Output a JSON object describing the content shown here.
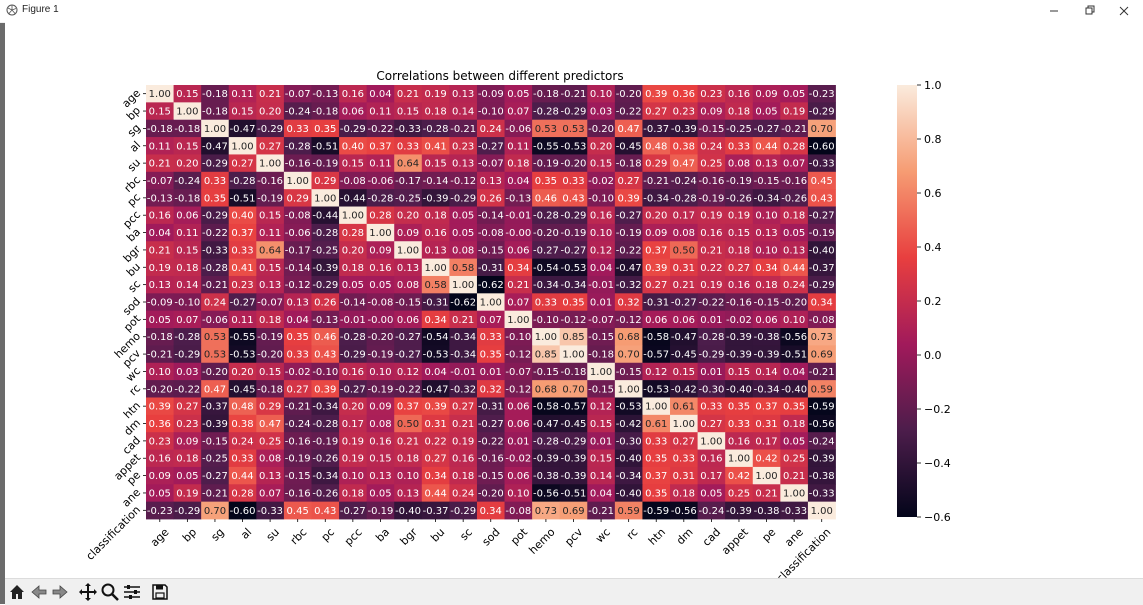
{
  "window": {
    "title": "Figure 1"
  },
  "toolbar": {
    "buttons": [
      "home-button",
      "back-button",
      "forward-button",
      "pan-button",
      "zoom-button",
      "configure-subplots-button",
      "save-button"
    ]
  },
  "colors": {
    "cmap_stops": [
      "#03051a",
      "#4c1d4b",
      "#a11a5b",
      "#e83f3f",
      "#f69c73",
      "#faebdd"
    ]
  },
  "chart_data": {
    "type": "heatmap",
    "title": "Correlations between different predictors",
    "labels": [
      "age",
      "bp",
      "sg",
      "al",
      "su",
      "rbc",
      "pc",
      "pcc",
      "ba",
      "bgr",
      "bu",
      "sc",
      "sod",
      "pot",
      "hemo",
      "pcv",
      "wc",
      "rc",
      "htn",
      "dm",
      "cad",
      "appet",
      "pe",
      "ane",
      "classification"
    ],
    "vmin": -0.6,
    "vmax": 1.0,
    "colorbar_ticks": [
      1.0,
      0.8,
      0.6,
      0.4,
      0.2,
      0.0,
      -0.2,
      -0.4,
      -0.6
    ],
    "colorbar_tick_labels": [
      "1.0",
      "0.8",
      "0.6",
      "0.4",
      "0.2",
      "0.0",
      "−0.2",
      "−0.4",
      "−0.6"
    ],
    "values": [
      [
        1.0,
        0.15,
        -0.18,
        0.11,
        0.21,
        -0.07,
        -0.13,
        0.16,
        0.04,
        0.21,
        0.19,
        0.13,
        -0.09,
        0.05,
        -0.18,
        -0.21,
        0.1,
        -0.2,
        0.39,
        0.36,
        0.23,
        0.16,
        0.09,
        0.05,
        -0.23
      ],
      [
        0.15,
        1.0,
        -0.18,
        0.15,
        0.2,
        -0.24,
        -0.18,
        0.06,
        0.11,
        0.15,
        0.18,
        0.14,
        -0.1,
        0.07,
        -0.28,
        -0.29,
        0.03,
        -0.22,
        0.27,
        0.23,
        0.09,
        0.18,
        0.05,
        0.19,
        -0.29
      ],
      [
        -0.18,
        -0.18,
        1.0,
        -0.47,
        -0.29,
        0.33,
        0.35,
        -0.29,
        -0.22,
        -0.33,
        -0.28,
        -0.21,
        0.24,
        -0.06,
        0.53,
        0.53,
        -0.2,
        0.47,
        -0.37,
        -0.39,
        -0.15,
        -0.25,
        -0.27,
        -0.21,
        0.7
      ],
      [
        0.11,
        0.15,
        -0.47,
        1.0,
        0.27,
        -0.28,
        -0.51,
        0.4,
        0.37,
        0.33,
        0.41,
        0.23,
        -0.27,
        0.11,
        -0.55,
        -0.53,
        0.2,
        -0.45,
        0.48,
        0.38,
        0.24,
        0.33,
        0.44,
        0.28,
        -0.6
      ],
      [
        0.21,
        0.2,
        -0.29,
        0.27,
        1.0,
        -0.16,
        -0.19,
        0.15,
        0.11,
        0.64,
        0.15,
        0.13,
        -0.07,
        0.18,
        -0.19,
        -0.2,
        0.15,
        -0.18,
        0.29,
        0.47,
        0.25,
        0.08,
        0.13,
        0.07,
        -0.33
      ],
      [
        -0.07,
        -0.24,
        0.33,
        -0.28,
        -0.16,
        1.0,
        0.29,
        -0.08,
        -0.06,
        -0.17,
        -0.14,
        -0.12,
        0.13,
        0.04,
        0.35,
        0.33,
        -0.02,
        0.27,
        -0.21,
        -0.24,
        -0.16,
        -0.19,
        -0.15,
        -0.16,
        0.45
      ],
      [
        -0.13,
        -0.18,
        0.35,
        -0.51,
        -0.19,
        0.29,
        1.0,
        -0.44,
        -0.28,
        -0.25,
        -0.39,
        -0.29,
        0.26,
        -0.13,
        0.46,
        0.43,
        -0.1,
        0.39,
        -0.34,
        -0.28,
        -0.19,
        -0.26,
        -0.34,
        -0.26,
        0.43
      ],
      [
        0.16,
        0.06,
        -0.29,
        0.4,
        0.15,
        -0.08,
        -0.44,
        1.0,
        0.28,
        0.2,
        0.18,
        0.05,
        -0.14,
        -0.01,
        -0.28,
        -0.29,
        0.16,
        -0.27,
        0.2,
        0.17,
        0.19,
        0.19,
        0.1,
        0.18,
        -0.27
      ],
      [
        0.04,
        0.11,
        -0.22,
        0.37,
        0.11,
        -0.06,
        -0.28,
        0.28,
        1.0,
        0.09,
        0.16,
        0.05,
        -0.08,
        -0.0,
        -0.2,
        -0.19,
        0.1,
        -0.19,
        0.09,
        0.08,
        0.16,
        0.15,
        0.13,
        0.05,
        -0.19
      ],
      [
        0.21,
        0.15,
        -0.33,
        0.33,
        0.64,
        -0.17,
        -0.25,
        0.2,
        0.09,
        1.0,
        0.13,
        0.08,
        -0.15,
        0.06,
        -0.27,
        -0.27,
        0.12,
        -0.22,
        0.37,
        0.5,
        0.21,
        0.18,
        0.1,
        0.13,
        -0.4
      ],
      [
        0.19,
        0.18,
        -0.28,
        0.41,
        0.15,
        -0.14,
        -0.39,
        0.18,
        0.16,
        0.13,
        1.0,
        0.58,
        -0.31,
        0.34,
        -0.54,
        -0.53,
        0.04,
        -0.47,
        0.39,
        0.31,
        0.22,
        0.27,
        0.34,
        0.44,
        -0.37
      ],
      [
        0.13,
        0.14,
        -0.21,
        0.23,
        0.13,
        -0.12,
        -0.29,
        0.05,
        0.05,
        0.08,
        0.58,
        1.0,
        -0.62,
        0.21,
        -0.34,
        -0.34,
        -0.01,
        -0.32,
        0.27,
        0.21,
        0.19,
        0.16,
        0.18,
        0.24,
        -0.29
      ],
      [
        -0.09,
        -0.1,
        0.24,
        -0.27,
        -0.07,
        0.13,
        0.26,
        -0.14,
        -0.08,
        -0.15,
        -0.31,
        -0.62,
        1.0,
        0.07,
        0.33,
        0.35,
        0.01,
        0.32,
        -0.31,
        -0.27,
        -0.22,
        -0.16,
        -0.15,
        -0.2,
        0.34
      ],
      [
        0.05,
        0.07,
        -0.06,
        0.11,
        0.18,
        0.04,
        -0.13,
        -0.01,
        -0.0,
        0.06,
        0.34,
        0.21,
        0.07,
        1.0,
        -0.1,
        -0.12,
        -0.07,
        -0.12,
        0.06,
        0.06,
        0.01,
        -0.02,
        0.06,
        0.1,
        -0.08
      ],
      [
        -0.18,
        -0.28,
        0.53,
        -0.55,
        -0.19,
        0.35,
        0.46,
        -0.28,
        -0.2,
        -0.27,
        -0.54,
        -0.34,
        0.33,
        -0.1,
        1.0,
        0.85,
        -0.15,
        0.68,
        -0.58,
        -0.47,
        -0.28,
        -0.39,
        -0.38,
        -0.56,
        0.73
      ],
      [
        -0.21,
        -0.29,
        0.53,
        -0.53,
        -0.2,
        0.33,
        0.43,
        -0.29,
        -0.19,
        -0.27,
        -0.53,
        -0.34,
        0.35,
        -0.12,
        0.85,
        1.0,
        -0.18,
        0.7,
        -0.57,
        -0.45,
        -0.29,
        -0.39,
        -0.39,
        -0.51,
        0.69
      ],
      [
        0.1,
        0.03,
        -0.2,
        0.2,
        0.15,
        -0.02,
        -0.1,
        0.16,
        0.1,
        0.12,
        0.04,
        -0.01,
        0.01,
        -0.07,
        -0.15,
        -0.18,
        1.0,
        -0.15,
        0.12,
        0.15,
        0.01,
        0.15,
        0.14,
        0.04,
        -0.21
      ],
      [
        -0.2,
        -0.22,
        0.47,
        -0.45,
        -0.18,
        0.27,
        0.39,
        -0.27,
        -0.19,
        -0.22,
        -0.47,
        -0.32,
        0.32,
        -0.12,
        0.68,
        0.7,
        -0.15,
        1.0,
        -0.53,
        -0.42,
        -0.3,
        -0.4,
        -0.34,
        -0.4,
        0.59
      ],
      [
        0.39,
        0.27,
        -0.37,
        0.48,
        0.29,
        -0.21,
        -0.34,
        0.2,
        0.09,
        0.37,
        0.39,
        0.27,
        -0.31,
        0.06,
        -0.58,
        -0.57,
        0.12,
        -0.53,
        1.0,
        0.61,
        0.33,
        0.35,
        0.37,
        0.35,
        -0.59
      ],
      [
        0.36,
        0.23,
        -0.39,
        0.38,
        0.47,
        -0.24,
        -0.28,
        0.17,
        0.08,
        0.5,
        0.31,
        0.21,
        -0.27,
        0.06,
        -0.47,
        -0.45,
        0.15,
        -0.42,
        0.61,
        1.0,
        0.27,
        0.33,
        0.31,
        0.18,
        -0.56
      ],
      [
        0.23,
        0.09,
        -0.15,
        0.24,
        0.25,
        -0.16,
        -0.19,
        0.19,
        0.16,
        0.21,
        0.22,
        0.19,
        -0.22,
        0.01,
        -0.28,
        -0.29,
        0.01,
        -0.3,
        0.33,
        0.27,
        1.0,
        0.16,
        0.17,
        0.05,
        -0.24
      ],
      [
        0.16,
        0.18,
        -0.25,
        0.33,
        0.08,
        -0.19,
        -0.26,
        0.19,
        0.15,
        0.18,
        0.27,
        0.16,
        -0.16,
        -0.02,
        -0.39,
        -0.39,
        0.15,
        -0.4,
        0.35,
        0.33,
        0.16,
        1.0,
        0.42,
        0.25,
        -0.39
      ],
      [
        0.09,
        0.05,
        -0.27,
        0.44,
        0.13,
        -0.15,
        -0.34,
        0.1,
        0.13,
        0.1,
        0.34,
        0.18,
        -0.15,
        0.06,
        -0.38,
        -0.39,
        0.14,
        -0.34,
        0.37,
        0.31,
        0.17,
        0.42,
        1.0,
        0.21,
        -0.38
      ],
      [
        0.05,
        0.19,
        -0.21,
        0.28,
        0.07,
        -0.16,
        -0.26,
        0.18,
        0.05,
        0.13,
        0.44,
        0.24,
        -0.2,
        0.1,
        -0.56,
        -0.51,
        0.04,
        -0.4,
        0.35,
        0.18,
        0.05,
        0.25,
        0.21,
        1.0,
        -0.33
      ],
      [
        -0.23,
        -0.29,
        0.7,
        -0.6,
        -0.33,
        0.45,
        0.43,
        -0.27,
        -0.19,
        -0.4,
        -0.37,
        -0.29,
        0.34,
        -0.08,
        0.73,
        0.69,
        -0.21,
        0.59,
        -0.59,
        -0.56,
        -0.24,
        -0.39,
        -0.38,
        -0.33,
        1.0
      ]
    ]
  }
}
